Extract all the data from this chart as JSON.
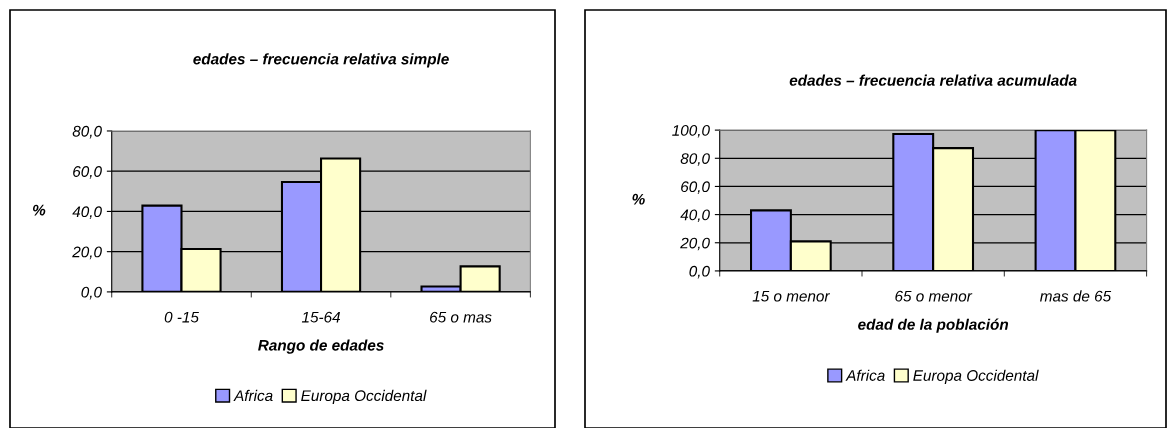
{
  "chart_data": [
    {
      "type": "bar",
      "title": "edades – frecuencia relativa simple",
      "xlabel": "Rango de edades",
      "ylabel": "%",
      "categories": [
        "0 -15",
        "15-64",
        "65 o mas"
      ],
      "series": [
        {
          "name": "Africa",
          "color": "#9999ff",
          "values": [
            42.9,
            54.6,
            2.7
          ]
        },
        {
          "name": "Europa Occidental",
          "color": "#ffffcc",
          "values": [
            21.3,
            66.3,
            12.7
          ]
        }
      ],
      "ylim": [
        0,
        80
      ],
      "yticks": [
        {
          "value": 0,
          "label": "0,0"
        },
        {
          "value": 20,
          "label": "20,0"
        },
        {
          "value": 40,
          "label": "40,0"
        },
        {
          "value": 60,
          "label": "60,0"
        },
        {
          "value": 80,
          "label": "80,0"
        }
      ],
      "grid": "y",
      "legend": "bottom"
    },
    {
      "type": "bar",
      "title": "edades – frecuencia relativa acumulada",
      "xlabel": "edad de la población",
      "ylabel": "%",
      "categories": [
        "15 o menor",
        "65 o menor",
        "mas de 65"
      ],
      "series": [
        {
          "name": "Africa",
          "color": "#9999ff",
          "values": [
            43.0,
            97.2,
            100
          ]
        },
        {
          "name": "Europa Occidental",
          "color": "#ffffcc",
          "values": [
            21.0,
            87.2,
            100
          ]
        }
      ],
      "ylim": [
        0,
        100
      ],
      "yticks": [
        {
          "value": 0,
          "label": "0,0"
        },
        {
          "value": 20,
          "label": "20,0"
        },
        {
          "value": 40,
          "label": "40,0"
        },
        {
          "value": 60,
          "label": "60,0"
        },
        {
          "value": 80,
          "label": "80,0"
        },
        {
          "value": 100,
          "label": "100,0"
        }
      ],
      "grid": "y",
      "legend": "bottom"
    }
  ]
}
